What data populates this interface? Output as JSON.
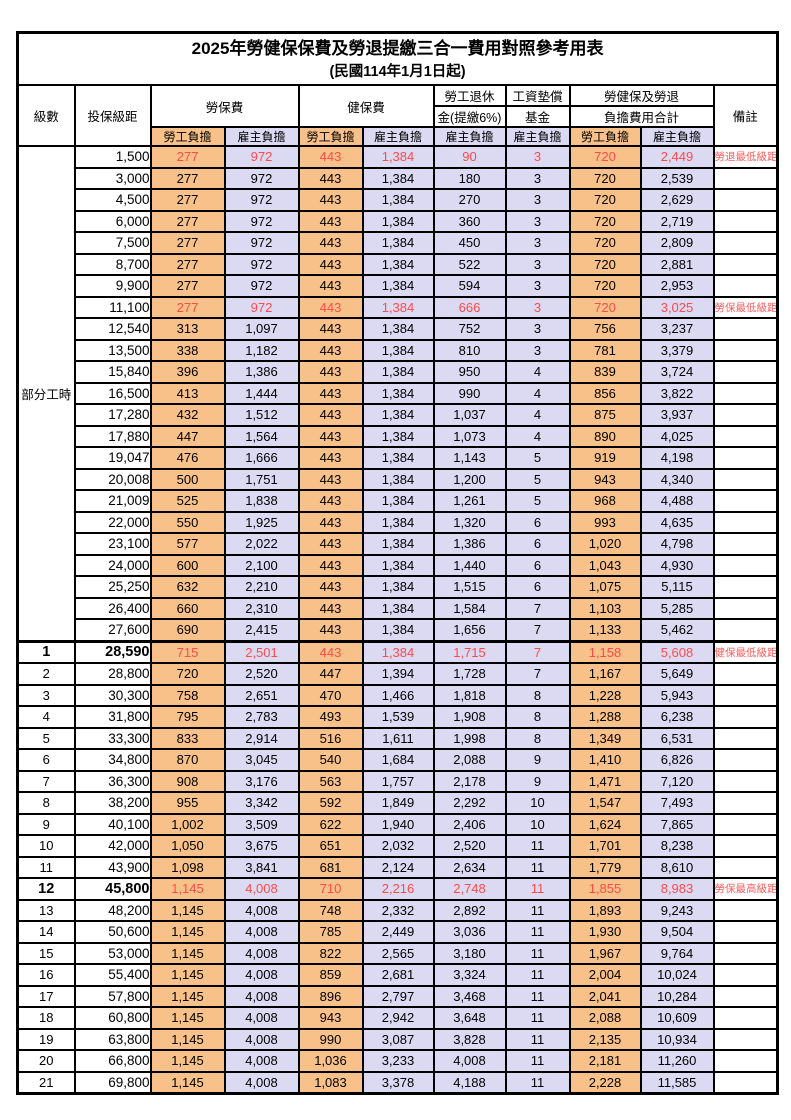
{
  "title": "2025年勞健保保費及勞退提繳三合一費用對照參考用表",
  "subtitle": "(民國114年1月1日起)",
  "header": {
    "level": "級數",
    "bracket": "投保級距",
    "labor_ins": "勞保費",
    "health_ins": "健保費",
    "pension_line1": "勞工退休",
    "pension_line2": "金(提繳6%)",
    "wage_fund_line1": "工資墊償",
    "wage_fund_line2": "基金",
    "total_line1": "勞健保及勞退",
    "total_line2": "負擔費用合計",
    "remark": "備註",
    "employee": "勞工負擔",
    "employer": "雇主負擔"
  },
  "part_time_label": "部分工時",
  "colors": {
    "employee_bg": "#f8c189",
    "employer_bg": "#dcdaf2",
    "highlight_text": "#ff4a4a",
    "remark_text": "#ff5c5c",
    "border": "#000000"
  },
  "rows": [
    {
      "bracket": "1,500",
      "values": [
        "277",
        "972",
        "443",
        "1,384",
        "90",
        "3",
        "720",
        "2,449"
      ],
      "remark": "勞退最低級距",
      "highlight": true
    },
    {
      "bracket": "3,000",
      "values": [
        "277",
        "972",
        "443",
        "1,384",
        "180",
        "3",
        "720",
        "2,539"
      ]
    },
    {
      "bracket": "4,500",
      "values": [
        "277",
        "972",
        "443",
        "1,384",
        "270",
        "3",
        "720",
        "2,629"
      ]
    },
    {
      "bracket": "6,000",
      "values": [
        "277",
        "972",
        "443",
        "1,384",
        "360",
        "3",
        "720",
        "2,719"
      ]
    },
    {
      "bracket": "7,500",
      "values": [
        "277",
        "972",
        "443",
        "1,384",
        "450",
        "3",
        "720",
        "2,809"
      ]
    },
    {
      "bracket": "8,700",
      "values": [
        "277",
        "972",
        "443",
        "1,384",
        "522",
        "3",
        "720",
        "2,881"
      ]
    },
    {
      "bracket": "9,900",
      "values": [
        "277",
        "972",
        "443",
        "1,384",
        "594",
        "3",
        "720",
        "2,953"
      ]
    },
    {
      "bracket": "11,100",
      "values": [
        "277",
        "972",
        "443",
        "1,384",
        "666",
        "3",
        "720",
        "3,025"
      ],
      "remark": "勞保最低級距",
      "highlight": true
    },
    {
      "bracket": "12,540",
      "values": [
        "313",
        "1,097",
        "443",
        "1,384",
        "752",
        "3",
        "756",
        "3,237"
      ]
    },
    {
      "bracket": "13,500",
      "values": [
        "338",
        "1,182",
        "443",
        "1,384",
        "810",
        "3",
        "781",
        "3,379"
      ]
    },
    {
      "bracket": "15,840",
      "values": [
        "396",
        "1,386",
        "443",
        "1,384",
        "950",
        "4",
        "839",
        "3,724"
      ]
    },
    {
      "bracket": "16,500",
      "values": [
        "413",
        "1,444",
        "443",
        "1,384",
        "990",
        "4",
        "856",
        "3,822"
      ]
    },
    {
      "bracket": "17,280",
      "values": [
        "432",
        "1,512",
        "443",
        "1,384",
        "1,037",
        "4",
        "875",
        "3,937"
      ]
    },
    {
      "bracket": "17,880",
      "values": [
        "447",
        "1,564",
        "443",
        "1,384",
        "1,073",
        "4",
        "890",
        "4,025"
      ]
    },
    {
      "bracket": "19,047",
      "values": [
        "476",
        "1,666",
        "443",
        "1,384",
        "1,143",
        "5",
        "919",
        "4,198"
      ]
    },
    {
      "bracket": "20,008",
      "values": [
        "500",
        "1,751",
        "443",
        "1,384",
        "1,200",
        "5",
        "943",
        "4,340"
      ]
    },
    {
      "bracket": "21,009",
      "values": [
        "525",
        "1,838",
        "443",
        "1,384",
        "1,261",
        "5",
        "968",
        "4,488"
      ]
    },
    {
      "bracket": "22,000",
      "values": [
        "550",
        "1,925",
        "443",
        "1,384",
        "1,320",
        "6",
        "993",
        "4,635"
      ]
    },
    {
      "bracket": "23,100",
      "values": [
        "577",
        "2,022",
        "443",
        "1,384",
        "1,386",
        "6",
        "1,020",
        "4,798"
      ]
    },
    {
      "bracket": "24,000",
      "values": [
        "600",
        "2,100",
        "443",
        "1,384",
        "1,440",
        "6",
        "1,043",
        "4,930"
      ]
    },
    {
      "bracket": "25,250",
      "values": [
        "632",
        "2,210",
        "443",
        "1,384",
        "1,515",
        "6",
        "1,075",
        "5,115"
      ]
    },
    {
      "bracket": "26,400",
      "values": [
        "660",
        "2,310",
        "443",
        "1,384",
        "1,584",
        "7",
        "1,103",
        "5,285"
      ]
    },
    {
      "bracket": "27,600",
      "values": [
        "690",
        "2,415",
        "443",
        "1,384",
        "1,656",
        "7",
        "1,133",
        "5,462"
      ]
    },
    {
      "level": "1",
      "bracket": "28,590",
      "values": [
        "715",
        "2,501",
        "443",
        "1,384",
        "1,715",
        "7",
        "1,158",
        "5,608"
      ],
      "remark": "健保最低級距",
      "highlight": true,
      "emphasis": true
    },
    {
      "level": "2",
      "bracket": "28,800",
      "values": [
        "720",
        "2,520",
        "447",
        "1,394",
        "1,728",
        "7",
        "1,167",
        "5,649"
      ]
    },
    {
      "level": "3",
      "bracket": "30,300",
      "values": [
        "758",
        "2,651",
        "470",
        "1,466",
        "1,818",
        "8",
        "1,228",
        "5,943"
      ]
    },
    {
      "level": "4",
      "bracket": "31,800",
      "values": [
        "795",
        "2,783",
        "493",
        "1,539",
        "1,908",
        "8",
        "1,288",
        "6,238"
      ]
    },
    {
      "level": "5",
      "bracket": "33,300",
      "values": [
        "833",
        "2,914",
        "516",
        "1,611",
        "1,998",
        "8",
        "1,349",
        "6,531"
      ]
    },
    {
      "level": "6",
      "bracket": "34,800",
      "values": [
        "870",
        "3,045",
        "540",
        "1,684",
        "2,088",
        "9",
        "1,410",
        "6,826"
      ]
    },
    {
      "level": "7",
      "bracket": "36,300",
      "values": [
        "908",
        "3,176",
        "563",
        "1,757",
        "2,178",
        "9",
        "1,471",
        "7,120"
      ]
    },
    {
      "level": "8",
      "bracket": "38,200",
      "values": [
        "955",
        "3,342",
        "592",
        "1,849",
        "2,292",
        "10",
        "1,547",
        "7,493"
      ]
    },
    {
      "level": "9",
      "bracket": "40,100",
      "values": [
        "1,002",
        "3,509",
        "622",
        "1,940",
        "2,406",
        "10",
        "1,624",
        "7,865"
      ]
    },
    {
      "level": "10",
      "bracket": "42,000",
      "values": [
        "1,050",
        "3,675",
        "651",
        "2,032",
        "2,520",
        "11",
        "1,701",
        "8,238"
      ]
    },
    {
      "level": "11",
      "bracket": "43,900",
      "values": [
        "1,098",
        "3,841",
        "681",
        "2,124",
        "2,634",
        "11",
        "1,779",
        "8,610"
      ]
    },
    {
      "level": "12",
      "bracket": "45,800",
      "values": [
        "1,145",
        "4,008",
        "710",
        "2,216",
        "2,748",
        "11",
        "1,855",
        "8,983"
      ],
      "remark": "勞保最高級距",
      "highlight": true,
      "emphasis": true
    },
    {
      "level": "13",
      "bracket": "48,200",
      "values": [
        "1,145",
        "4,008",
        "748",
        "2,332",
        "2,892",
        "11",
        "1,893",
        "9,243"
      ]
    },
    {
      "level": "14",
      "bracket": "50,600",
      "values": [
        "1,145",
        "4,008",
        "785",
        "2,449",
        "3,036",
        "11",
        "1,930",
        "9,504"
      ]
    },
    {
      "level": "15",
      "bracket": "53,000",
      "values": [
        "1,145",
        "4,008",
        "822",
        "2,565",
        "3,180",
        "11",
        "1,967",
        "9,764"
      ]
    },
    {
      "level": "16",
      "bracket": "55,400",
      "values": [
        "1,145",
        "4,008",
        "859",
        "2,681",
        "3,324",
        "11",
        "2,004",
        "10,024"
      ]
    },
    {
      "level": "17",
      "bracket": "57,800",
      "values": [
        "1,145",
        "4,008",
        "896",
        "2,797",
        "3,468",
        "11",
        "2,041",
        "10,284"
      ]
    },
    {
      "level": "18",
      "bracket": "60,800",
      "values": [
        "1,145",
        "4,008",
        "943",
        "2,942",
        "3,648",
        "11",
        "2,088",
        "10,609"
      ]
    },
    {
      "level": "19",
      "bracket": "63,800",
      "values": [
        "1,145",
        "4,008",
        "990",
        "3,087",
        "3,828",
        "11",
        "2,135",
        "10,934"
      ]
    },
    {
      "level": "20",
      "bracket": "66,800",
      "values": [
        "1,145",
        "4,008",
        "1,036",
        "3,233",
        "4,008",
        "11",
        "2,181",
        "11,260"
      ]
    },
    {
      "level": "21",
      "bracket": "69,800",
      "values": [
        "1,145",
        "4,008",
        "1,083",
        "3,378",
        "4,188",
        "11",
        "2,228",
        "11,585"
      ]
    }
  ]
}
